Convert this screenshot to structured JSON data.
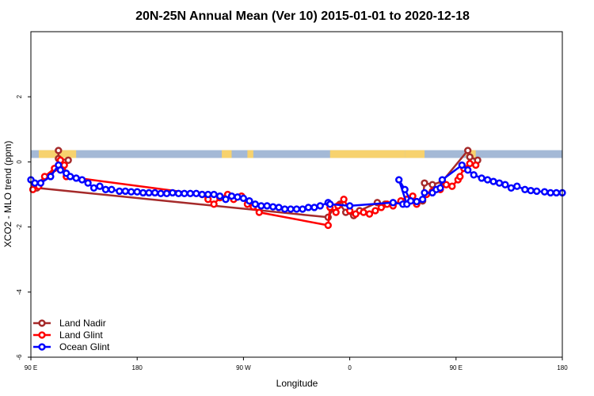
{
  "chart_data": {
    "type": "line",
    "title": "20N-25N Annual Mean (Ver 10)   2015-01-01 to 2020-12-18",
    "xlabel": "Longitude",
    "ylabel": "XCO2 - MLO trend (ppm)",
    "xlim": [
      -90,
      180
    ],
    "ylim": [
      -6,
      4
    ],
    "x_ticks": [
      {
        "value": -90,
        "label": "90 E"
      },
      {
        "value": -36,
        "label": "180"
      },
      {
        "value": 18,
        "label": "90 W"
      },
      {
        "value": 72,
        "label": "0"
      },
      {
        "value": 126,
        "label": "90 E"
      },
      {
        "value": 180,
        "label": "180"
      }
    ],
    "y_ticks": [
      {
        "value": -6,
        "label": "-6"
      },
      {
        "value": -4,
        "label": "-4"
      },
      {
        "value": -2,
        "label": "-2"
      },
      {
        "value": 0,
        "label": "0"
      },
      {
        "value": 2,
        "label": "2"
      }
    ],
    "grid": false,
    "legend_position": "bottom-left",
    "land_band": {
      "y_range": [
        0.12,
        0.36
      ],
      "ocean_color": "#a4b9d6",
      "land_color": "#f7d26e",
      "land_x_ranges": [
        [
          -86,
          -69
        ],
        [
          -71,
          -67
        ],
        [
          7,
          12
        ],
        [
          20,
          23
        ],
        [
          62,
          100
        ],
        [
          100,
          110
        ],
        [
          131,
          136
        ]
      ]
    },
    "series": [
      {
        "name": "Land Nadir",
        "color": "#a52a2a",
        "points": [
          [
            -76,
            0.35
          ],
          [
            -76,
            0.1
          ],
          [
            -71,
            0.05
          ],
          [
            -88,
            -0.7
          ],
          [
            -87,
            -0.8
          ],
          [
            61,
            -1.7
          ],
          [
            64,
            -1.4
          ],
          [
            67,
            -1.3
          ],
          [
            70,
            -1.55
          ],
          [
            74,
            -1.65
          ],
          [
            77,
            -1.5
          ],
          [
            86,
            -1.25
          ],
          [
            90,
            -1.3
          ],
          [
            102,
            -1.2
          ],
          [
            106,
            -1.22
          ],
          [
            109,
            -1.2
          ],
          [
            110,
            -0.65
          ],
          [
            114,
            -0.7
          ],
          [
            119,
            -0.6
          ],
          [
            132,
            0.35
          ],
          [
            133,
            0.15
          ],
          [
            137,
            0.05
          ]
        ]
      },
      {
        "name": "Land Glint",
        "color": "#ff0000",
        "points": [
          [
            -89,
            -0.85
          ],
          [
            -86,
            -0.75
          ],
          [
            -83,
            -0.45
          ],
          [
            -78,
            -0.2
          ],
          [
            -75,
            0.05
          ],
          [
            -73,
            -0.1
          ],
          [
            -72,
            -0.45
          ],
          [
            -3,
            -1.0
          ],
          [
            0,
            -1.15
          ],
          [
            3,
            -1.3
          ],
          [
            6,
            -1.1
          ],
          [
            10,
            -1.0
          ],
          [
            13,
            -1.15
          ],
          [
            17,
            -1.05
          ],
          [
            20,
            -1.3
          ],
          [
            23,
            -1.38
          ],
          [
            26,
            -1.55
          ],
          [
            61,
            -1.95
          ],
          [
            62,
            -1.4
          ],
          [
            65,
            -1.55
          ],
          [
            66,
            -1.35
          ],
          [
            69,
            -1.15
          ],
          [
            72,
            -1.5
          ],
          [
            75,
            -1.6
          ],
          [
            79,
            -1.55
          ],
          [
            82,
            -1.6
          ],
          [
            85,
            -1.5
          ],
          [
            88,
            -1.4
          ],
          [
            91,
            -1.3
          ],
          [
            94,
            -1.35
          ],
          [
            98,
            -1.2
          ],
          [
            101,
            -1.15
          ],
          [
            104,
            -1.05
          ],
          [
            106,
            -1.3
          ],
          [
            111,
            -1.0
          ],
          [
            114,
            -0.9
          ],
          [
            118,
            -0.85
          ],
          [
            121,
            -0.7
          ],
          [
            124,
            -0.75
          ],
          [
            127,
            -0.55
          ],
          [
            128,
            -0.45
          ],
          [
            130,
            -0.2
          ],
          [
            133,
            -0.05
          ],
          [
            136,
            -0.1
          ]
        ]
      },
      {
        "name": "Ocean Glint",
        "color": "#0000ff",
        "points": [
          [
            -90,
            -0.55
          ],
          [
            -88,
            -0.65
          ],
          [
            -85,
            -0.65
          ],
          [
            -80,
            -0.45
          ],
          [
            -76,
            -0.1
          ],
          [
            -75,
            -0.25
          ],
          [
            -72,
            -0.35
          ],
          [
            -70,
            -0.45
          ],
          [
            -67,
            -0.5
          ],
          [
            -64,
            -0.55
          ],
          [
            -61,
            -0.65
          ],
          [
            -58,
            -0.8
          ],
          [
            -55,
            -0.75
          ],
          [
            -52,
            -0.85
          ],
          [
            -49,
            -0.85
          ],
          [
            -45,
            -0.9
          ],
          [
            -42,
            -0.9
          ],
          [
            -39,
            -0.92
          ],
          [
            -36,
            -0.92
          ],
          [
            -33,
            -0.95
          ],
          [
            -30,
            -0.95
          ],
          [
            -27,
            -0.95
          ],
          [
            -24,
            -0.97
          ],
          [
            -21,
            -0.97
          ],
          [
            -18,
            -0.95
          ],
          [
            -15,
            -0.97
          ],
          [
            -12,
            -0.97
          ],
          [
            -9,
            -0.97
          ],
          [
            -6,
            -0.97
          ],
          [
            -3,
            -1.0
          ],
          [
            0,
            -1.0
          ],
          [
            3,
            -1.0
          ],
          [
            6,
            -1.05
          ],
          [
            9,
            -1.15
          ],
          [
            12,
            -1.05
          ],
          [
            15,
            -1.08
          ],
          [
            18,
            -1.12
          ],
          [
            21,
            -1.2
          ],
          [
            24,
            -1.3
          ],
          [
            27,
            -1.35
          ],
          [
            30,
            -1.35
          ],
          [
            33,
            -1.38
          ],
          [
            36,
            -1.4
          ],
          [
            39,
            -1.45
          ],
          [
            42,
            -1.45
          ],
          [
            45,
            -1.45
          ],
          [
            48,
            -1.45
          ],
          [
            51,
            -1.4
          ],
          [
            54,
            -1.4
          ],
          [
            57,
            -1.35
          ],
          [
            61,
            -1.25
          ],
          [
            62,
            -1.3
          ],
          [
            72,
            -1.35
          ],
          [
            94,
            -1.25
          ],
          [
            99,
            -1.3
          ],
          [
            101,
            -1.3
          ],
          [
            97,
            -0.55
          ],
          [
            100,
            -0.85
          ],
          [
            103,
            -1.2
          ],
          [
            106,
            -1.22
          ],
          [
            109,
            -1.15
          ],
          [
            110,
            -0.95
          ],
          [
            114,
            -0.95
          ],
          [
            116,
            -0.85
          ],
          [
            118,
            -0.8
          ],
          [
            119,
            -0.55
          ],
          [
            129,
            -0.1
          ],
          [
            132,
            -0.25
          ],
          [
            135,
            -0.4
          ],
          [
            139,
            -0.5
          ],
          [
            142,
            -0.55
          ],
          [
            145,
            -0.6
          ],
          [
            148,
            -0.65
          ],
          [
            151,
            -0.7
          ],
          [
            154,
            -0.8
          ],
          [
            157,
            -0.75
          ],
          [
            161,
            -0.85
          ],
          [
            164,
            -0.88
          ],
          [
            167,
            -0.9
          ],
          [
            171,
            -0.92
          ],
          [
            174,
            -0.95
          ],
          [
            177,
            -0.95
          ],
          [
            180,
            -0.95
          ]
        ]
      }
    ]
  }
}
